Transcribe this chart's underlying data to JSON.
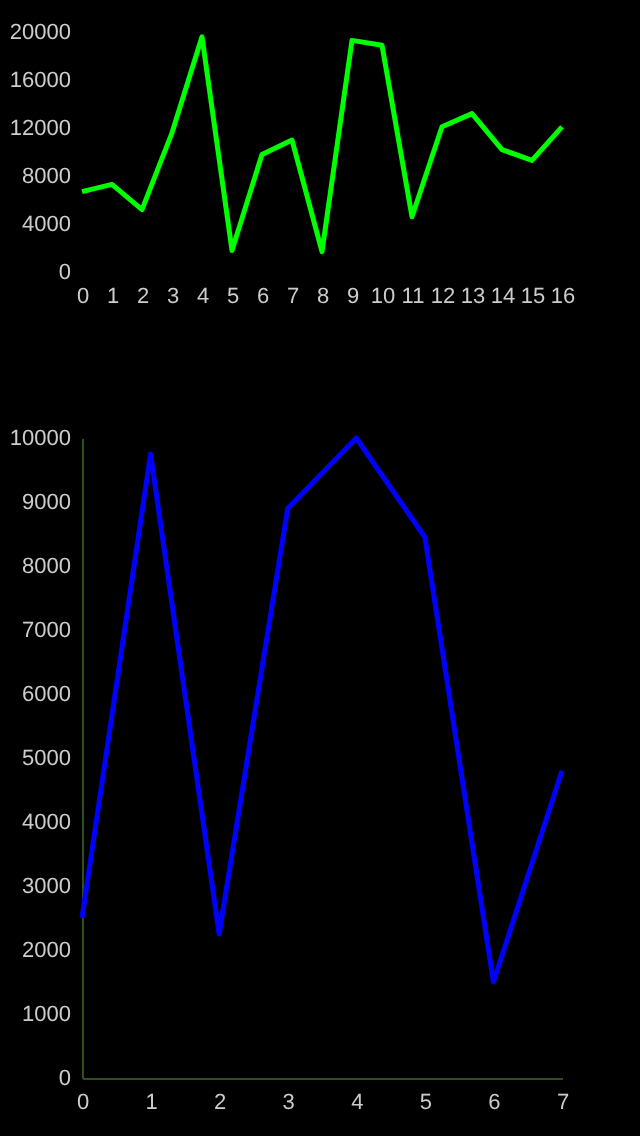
{
  "chart_data": [
    {
      "type": "line",
      "x": [
        0,
        1,
        2,
        3,
        4,
        5,
        6,
        7,
        8,
        9,
        10,
        11,
        12,
        13,
        14,
        15,
        16
      ],
      "series": [
        {
          "color": "#00ff00",
          "values": [
            6700,
            7300,
            5200,
            11600,
            19600,
            1800,
            9800,
            11000,
            1700,
            19300,
            18900,
            4600,
            12100,
            13200,
            10200,
            9300,
            12100
          ]
        }
      ],
      "xlim": [
        0,
        16
      ],
      "xticks": [
        0,
        1,
        2,
        3,
        4,
        5,
        6,
        7,
        8,
        9,
        10,
        11,
        12,
        13,
        14,
        15,
        16
      ],
      "ylim": [
        0,
        20000
      ],
      "yticks": [
        0,
        4000,
        8000,
        12000,
        16000,
        20000
      ],
      "grid": false,
      "legend": false
    },
    {
      "type": "line",
      "x": [
        0,
        1,
        2,
        3,
        4,
        5,
        6,
        7
      ],
      "series": [
        {
          "color": "#0000ff",
          "values": [
            2500,
            9750,
            2250,
            8900,
            10000,
            8450,
            1500,
            4800
          ]
        }
      ],
      "xlim": [
        0,
        7
      ],
      "xticks": [
        0,
        1,
        2,
        3,
        4,
        5,
        6,
        7
      ],
      "ylim": [
        0,
        10000
      ],
      "yticks": [
        0,
        1000,
        2000,
        3000,
        4000,
        5000,
        6000,
        7000,
        8000,
        9000,
        10000
      ],
      "grid": false,
      "legend": false
    }
  ]
}
